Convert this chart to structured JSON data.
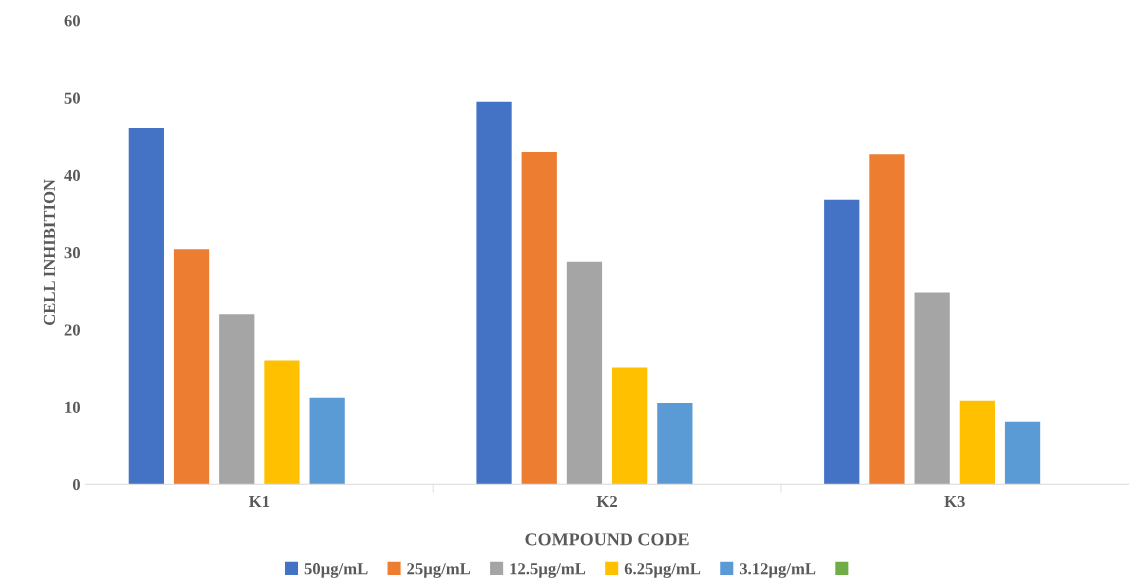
{
  "chart_data": {
    "type": "bar",
    "xlabel": "COMPOUND CODE",
    "ylabel": "CELL INHIBITION",
    "categories": [
      "K1",
      "K2",
      "K3"
    ],
    "series": [
      {
        "name": "50µg/mL",
        "color": "#4472c4",
        "values": [
          46.1,
          49.5,
          36.8
        ]
      },
      {
        "name": "25µg/mL",
        "color": "#ed7d31",
        "values": [
          30.4,
          43,
          42.7
        ]
      },
      {
        "name": "12.5µg/mL",
        "color": "#a5a5a5",
        "values": [
          22,
          28.8,
          24.8
        ]
      },
      {
        "name": "6.25µg/mL",
        "color": "#ffc000",
        "values": [
          16,
          15.1,
          10.8
        ]
      },
      {
        "name": "3.12µg/mL",
        "color": "#5b9bd5",
        "values": [
          11.2,
          10.5,
          8.1
        ]
      },
      {
        "color": "#70ad47",
        "values": [
          null,
          null,
          null
        ]
      }
    ],
    "ylim": [
      0,
      60
    ],
    "yticks": [
      0,
      10,
      20,
      30,
      40,
      50,
      60
    ],
    "grid": false,
    "legend": "bottom"
  }
}
